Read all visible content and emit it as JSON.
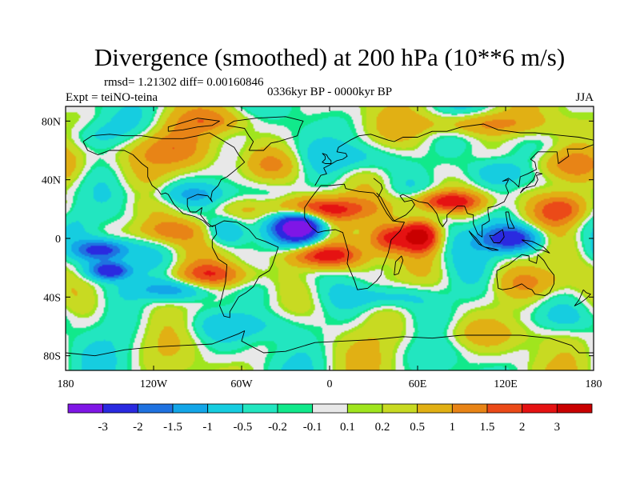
{
  "chart_data": {
    "type": "heatmap",
    "title": "Divergence (smoothed) at 200 hPa (10**6 m/s)",
    "stats_label": "rmsd= 1.21302 diff= 0.00160846",
    "left_label": "Expt = teiNO-teina",
    "center_label": "0336kyr BP - 0000kyr BP",
    "right_label": "JJA",
    "xlim": [
      -180,
      180
    ],
    "ylim": [
      -90,
      90
    ],
    "x_ticks": [
      {
        "value": -180,
        "label": "180"
      },
      {
        "value": -120,
        "label": "120W"
      },
      {
        "value": -60,
        "label": "60W"
      },
      {
        "value": 0,
        "label": "0"
      },
      {
        "value": 60,
        "label": "60E"
      },
      {
        "value": 120,
        "label": "120E"
      },
      {
        "value": 180,
        "label": "180"
      }
    ],
    "y_ticks": [
      {
        "value": 80,
        "label": "80N"
      },
      {
        "value": 40,
        "label": "40N"
      },
      {
        "value": 0,
        "label": "0"
      },
      {
        "value": -40,
        "label": "40S"
      },
      {
        "value": -80,
        "label": "80S"
      }
    ],
    "contour_levels": [
      -3,
      -2,
      -1.5,
      -1,
      -0.5,
      -0.2,
      -0.1,
      0.1,
      0.2,
      0.5,
      1,
      1.5,
      2,
      3
    ],
    "colorbar_labels": [
      "-3",
      "-2",
      "-1.5",
      "-1",
      "-0.5",
      "-0.2",
      "-0.1",
      "0.1",
      "0.2",
      "0.5",
      "1",
      "1.5",
      "2",
      "3"
    ],
    "colors": [
      "#7f16e6",
      "#2a2ae0",
      "#1f72e0",
      "#13a6e8",
      "#16cde0",
      "#22e6c0",
      "#11e98b",
      "#e8e8e8",
      "#a0e51e",
      "#c8da22",
      "#e1b014",
      "#e88416",
      "#eb4a18",
      "#e51212",
      "#c90000"
    ],
    "field_blobs": [
      {
        "lon": -20,
        "lat": 8,
        "r_lon": 16,
        "r_lat": 10,
        "amp": -4.0
      },
      {
        "lon": -10,
        "lat": 20,
        "r_lon": 38,
        "r_lat": 8,
        "amp": 2.2
      },
      {
        "lon": -5,
        "lat": -12,
        "r_lon": 26,
        "r_lat": 8,
        "amp": 2.4
      },
      {
        "lon": 40,
        "lat": 0,
        "r_lon": 14,
        "r_lat": 10,
        "amp": 2.0
      },
      {
        "lon": 62,
        "lat": 2,
        "r_lon": 12,
        "r_lat": 10,
        "amp": 3.5
      },
      {
        "lon": 80,
        "lat": 25,
        "r_lon": 25,
        "r_lat": 7,
        "amp": 2.4
      },
      {
        "lon": 125,
        "lat": 0,
        "r_lon": 22,
        "r_lat": 9,
        "amp": -2.6
      },
      {
        "lon": 160,
        "lat": 20,
        "r_lon": 18,
        "r_lat": 10,
        "amp": 1.6
      },
      {
        "lon": -155,
        "lat": -8,
        "r_lon": 18,
        "r_lat": 7,
        "amp": -2.4
      },
      {
        "lon": -150,
        "lat": -22,
        "r_lon": 14,
        "r_lat": 6,
        "amp": -2.8
      },
      {
        "lon": -110,
        "lat": 5,
        "r_lon": 25,
        "r_lat": 8,
        "amp": 1.2
      },
      {
        "lon": -70,
        "lat": 5,
        "r_lon": 14,
        "r_lat": 10,
        "amp": -1.4
      },
      {
        "lon": -80,
        "lat": -25,
        "r_lon": 30,
        "r_lat": 8,
        "amp": 1.4
      },
      {
        "lon": -105,
        "lat": -35,
        "r_lon": 30,
        "r_lat": 7,
        "amp": -1.2
      },
      {
        "lon": -95,
        "lat": 30,
        "r_lon": 35,
        "r_lat": 8,
        "amp": -0.9
      },
      {
        "lon": -115,
        "lat": 60,
        "r_lon": 30,
        "r_lat": 14,
        "amp": 1.4
      },
      {
        "lon": -80,
        "lat": 80,
        "r_lon": 25,
        "r_lat": 8,
        "amp": 0.9
      },
      {
        "lon": -160,
        "lat": 70,
        "r_lon": 20,
        "r_lat": 10,
        "amp": -0.6
      },
      {
        "lon": -40,
        "lat": 50,
        "r_lon": 20,
        "r_lat": 10,
        "amp": 0.8
      },
      {
        "lon": 20,
        "lat": 55,
        "r_lon": 30,
        "r_lat": 10,
        "amp": -0.8
      },
      {
        "lon": 100,
        "lat": 78,
        "r_lon": 40,
        "r_lat": 8,
        "amp": 1.3
      },
      {
        "lon": 115,
        "lat": 45,
        "r_lon": 20,
        "r_lat": 10,
        "amp": -1.0
      },
      {
        "lon": 160,
        "lat": 50,
        "r_lon": 25,
        "r_lat": 10,
        "amp": 1.1
      },
      {
        "lon": 140,
        "lat": -30,
        "r_lon": 25,
        "r_lat": 10,
        "amp": 1.0
      },
      {
        "lon": 40,
        "lat": -40,
        "r_lon": 30,
        "r_lat": 8,
        "amp": -0.9
      },
      {
        "lon": -60,
        "lat": -60,
        "r_lon": 40,
        "r_lat": 10,
        "amp": -0.6
      },
      {
        "lon": 100,
        "lat": -65,
        "r_lon": 45,
        "r_lat": 10,
        "amp": 0.5
      },
      {
        "lon": 160,
        "lat": -55,
        "r_lon": 25,
        "r_lat": 10,
        "amp": -0.5
      }
    ]
  }
}
